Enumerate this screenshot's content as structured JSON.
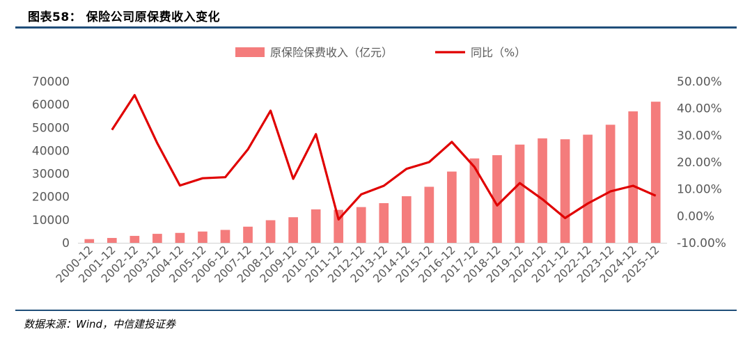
{
  "figure": {
    "title": "图表58： 保险公司原保费收入变化",
    "source": "数据来源：Wind，中信建投证券"
  },
  "colors": {
    "bar": "#f47c7c",
    "line": "#e00000",
    "rule": "#1f4e79",
    "axis": "#d0d0d0",
    "text": "#595959"
  },
  "chart_data": {
    "type": "bar",
    "categories": [
      "2000-12",
      "2001-12",
      "2002-12",
      "2003-12",
      "2004-12",
      "2005-12",
      "2006-12",
      "2007-12",
      "2008-12",
      "2009-12",
      "2010-12",
      "2011-12",
      "2012-12",
      "2013-12",
      "2014-12",
      "2015-12",
      "2016-12",
      "2017-12",
      "2018-12",
      "2019-12",
      "2020-12",
      "2021-12",
      "2022-12",
      "2023-12",
      "2024-12",
      "2025-12"
    ],
    "series": [
      {
        "name": "原保险保费收入（亿元）",
        "type": "bar",
        "axis": "left",
        "values": [
          1600,
          2100,
          3000,
          3900,
          4300,
          4900,
          5600,
          7000,
          9800,
          11100,
          14500,
          14300,
          15500,
          17200,
          20200,
          24300,
          30900,
          36600,
          38000,
          42600,
          45300,
          44900,
          46900,
          51200,
          57000,
          61200
        ]
      },
      {
        "name": "同比（%）",
        "type": "line",
        "axis": "right",
        "values": [
          null,
          32.0,
          44.9,
          27.0,
          11.3,
          14.0,
          14.4,
          24.7,
          39.1,
          13.8,
          30.4,
          -1.3,
          8.0,
          11.2,
          17.5,
          20.0,
          27.5,
          18.2,
          3.9,
          12.2,
          6.2,
          -0.8,
          4.6,
          9.1,
          11.2,
          7.5
        ]
      }
    ],
    "legend": [
      "原保险保费收入（亿元）",
      "同比（%）"
    ],
    "y_left": {
      "ticks": [
        "0",
        "10000",
        "20000",
        "30000",
        "40000",
        "50000",
        "60000",
        "70000"
      ],
      "range": [
        0,
        70000
      ]
    },
    "y_right": {
      "ticks": [
        "-10.00%",
        "0.00%",
        "10.00%",
        "20.00%",
        "30.00%",
        "40.00%",
        "50.00%"
      ],
      "range": [
        -10,
        50
      ]
    },
    "legend_position": "top-center",
    "grid": false
  }
}
